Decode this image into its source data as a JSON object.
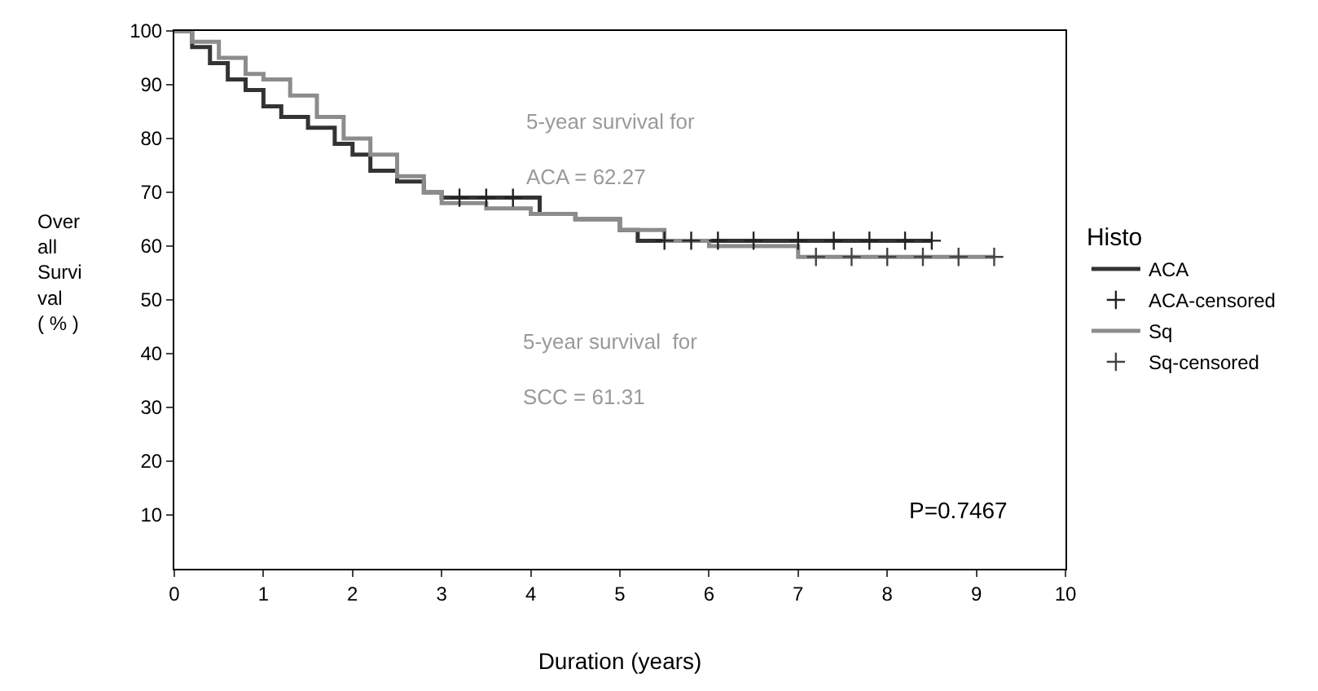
{
  "chart_data": {
    "type": "step",
    "xlabel": "Duration (years)",
    "ylabel": "Over\nall\nSurvi\nval\n( % )",
    "legend_title": "Histo",
    "legend": "right",
    "xlim": [
      0,
      10
    ],
    "xticks": [
      0,
      1,
      2,
      3,
      4,
      5,
      6,
      7,
      8,
      9,
      10
    ],
    "ylim": [
      0,
      100
    ],
    "yticks": [
      10,
      20,
      30,
      40,
      50,
      60,
      70,
      80,
      90,
      100
    ],
    "grid": false,
    "series": [
      {
        "name": "ACA",
        "color": "#333333",
        "marker": "none",
        "x": [
          0,
          0.2,
          0.4,
          0.6,
          0.8,
          1.0,
          1.2,
          1.5,
          1.8,
          2.0,
          2.2,
          2.5,
          2.8,
          3.0,
          3.9,
          4.1,
          4.5,
          5.0,
          5.2,
          8.5
        ],
        "values": [
          100,
          97,
          94,
          91,
          89,
          86,
          84,
          82,
          79,
          77,
          74,
          72,
          70,
          69,
          69,
          66,
          65,
          63,
          61,
          61
        ]
      },
      {
        "name": "ACA-censored",
        "type": "scatter",
        "color": "#222222",
        "marker": "cross",
        "x": [
          3.2,
          3.5,
          3.8,
          5.5,
          5.8,
          6.1,
          6.5,
          7.0,
          7.4,
          7.8,
          8.2,
          8.5
        ],
        "values": [
          69,
          69,
          69,
          61,
          61,
          61,
          61,
          61,
          61,
          61,
          61,
          61
        ]
      },
      {
        "name": "Sq",
        "color": "#8c8c8c",
        "marker": "none",
        "x": [
          0,
          0.2,
          0.5,
          0.8,
          1.0,
          1.3,
          1.6,
          1.9,
          2.2,
          2.5,
          2.8,
          3.0,
          3.5,
          4.0,
          4.5,
          5.0,
          5.5,
          6.0,
          6.8,
          7.0,
          9.2
        ],
        "values": [
          100,
          98,
          95,
          92,
          91,
          88,
          84,
          80,
          77,
          73,
          70,
          68,
          67,
          66,
          65,
          63,
          61,
          60,
          60,
          58,
          58
        ]
      },
      {
        "name": "Sq-censored",
        "type": "scatter",
        "color": "#444444",
        "marker": "cross",
        "x": [
          7.2,
          7.6,
          8.0,
          8.4,
          8.8,
          9.2
        ],
        "values": [
          58,
          58,
          58,
          58,
          58,
          58
        ]
      }
    ],
    "annotations": [
      "5-year survival for\n\nACA = 62.27",
      "5-year survival  for\n\nSCC = 61.31",
      "P=0.7467"
    ]
  }
}
